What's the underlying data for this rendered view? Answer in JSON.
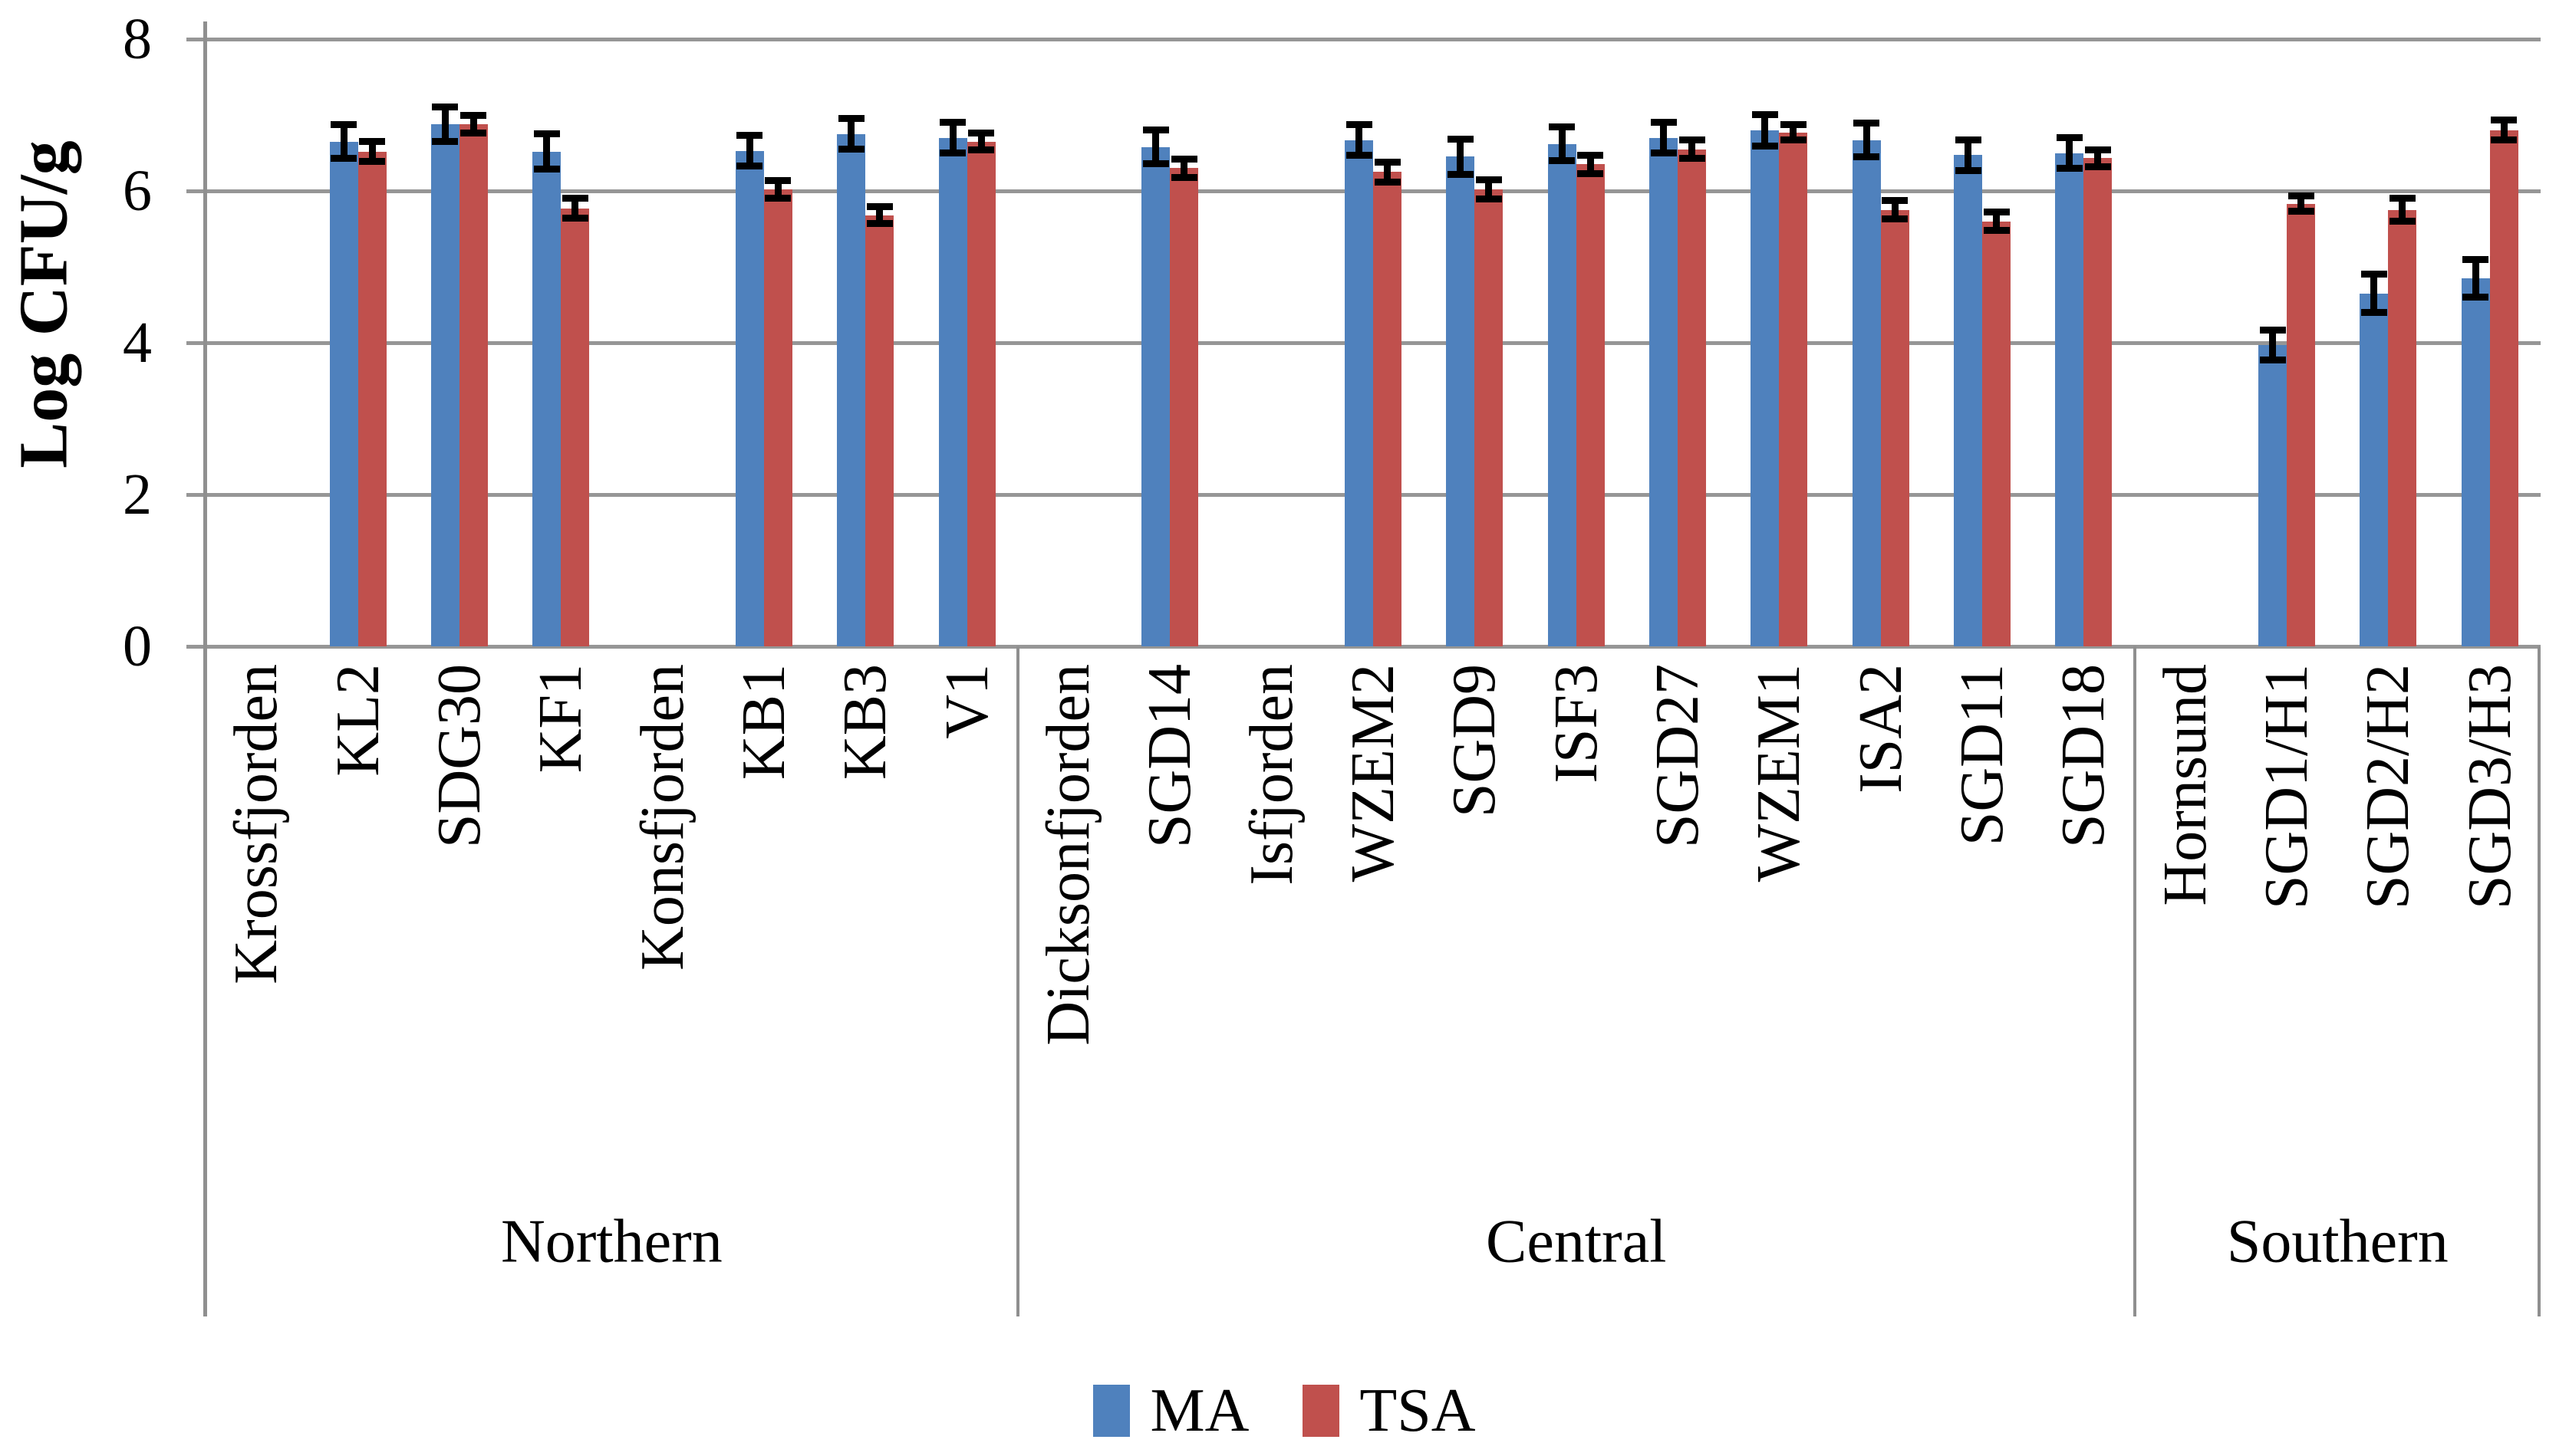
{
  "chart_data": {
    "type": "bar",
    "title": "",
    "ylabel": "Log CFU/g",
    "xlabel": "",
    "ylim": [
      0,
      8
    ],
    "yticks": [
      0,
      2,
      4,
      6,
      8
    ],
    "grid": true,
    "legend_position": "bottom-center",
    "colors": {
      "ma_bar": "#4F81BD",
      "tsa_bar": "#C0504D",
      "gridline": "#969696",
      "axis": "#8F8F8F",
      "error_bar": "#000000",
      "text": "#000000",
      "background": "#FFFFFF"
    },
    "series_meta": [
      {
        "name": "MA",
        "color": "#4F81BD"
      },
      {
        "name": "TSA",
        "color": "#C0504D"
      }
    ],
    "groups": [
      {
        "label": "Northern",
        "categories": [
          {
            "label": "Krossfjorden",
            "MA": null,
            "TSA": null,
            "MA_err": null,
            "TSA_err": null
          },
          {
            "label": "KL2",
            "MA": 6.65,
            "TSA": 6.52,
            "MA_err": 0.22,
            "TSA_err": 0.13
          },
          {
            "label": "SDG30",
            "MA": 6.88,
            "TSA": 6.88,
            "MA_err": 0.23,
            "TSA_err": 0.12
          },
          {
            "label": "KF1",
            "MA": 6.52,
            "TSA": 5.77,
            "MA_err": 0.23,
            "TSA_err": 0.13
          },
          {
            "label": "Konsfjorden",
            "MA": null,
            "TSA": null,
            "MA_err": null,
            "TSA_err": null
          },
          {
            "label": "KB1",
            "MA": 6.53,
            "TSA": 6.02,
            "MA_err": 0.2,
            "TSA_err": 0.12
          },
          {
            "label": "KB3",
            "MA": 6.75,
            "TSA": 5.68,
            "MA_err": 0.2,
            "TSA_err": 0.11
          },
          {
            "label": "V1",
            "MA": 6.7,
            "TSA": 6.65,
            "MA_err": 0.2,
            "TSA_err": 0.11
          }
        ]
      },
      {
        "label": "Central",
        "categories": [
          {
            "label": "Dicksonfjorden",
            "MA": null,
            "TSA": null,
            "MA_err": null,
            "TSA_err": null
          },
          {
            "label": "SGD14",
            "MA": 6.58,
            "TSA": 6.3,
            "MA_err": 0.22,
            "TSA_err": 0.12
          },
          {
            "label": "Isfjorden",
            "MA": null,
            "TSA": null,
            "MA_err": null,
            "TSA_err": null
          },
          {
            "label": "WZEM2",
            "MA": 6.67,
            "TSA": 6.25,
            "MA_err": 0.2,
            "TSA_err": 0.13
          },
          {
            "label": "SGD9",
            "MA": 6.45,
            "TSA": 6.02,
            "MA_err": 0.23,
            "TSA_err": 0.13
          },
          {
            "label": "ISF3",
            "MA": 6.62,
            "TSA": 6.35,
            "MA_err": 0.22,
            "TSA_err": 0.12
          },
          {
            "label": "SGD27",
            "MA": 6.7,
            "TSA": 6.55,
            "MA_err": 0.2,
            "TSA_err": 0.12
          },
          {
            "label": "WZEM1",
            "MA": 6.8,
            "TSA": 6.77,
            "MA_err": 0.21,
            "TSA_err": 0.1
          },
          {
            "label": "ISA2",
            "MA": 6.67,
            "TSA": 5.75,
            "MA_err": 0.22,
            "TSA_err": 0.12
          },
          {
            "label": "SGD11",
            "MA": 6.47,
            "TSA": 5.6,
            "MA_err": 0.2,
            "TSA_err": 0.12
          },
          {
            "label": "SGD18",
            "MA": 6.5,
            "TSA": 6.43,
            "MA_err": 0.2,
            "TSA_err": 0.11
          }
        ]
      },
      {
        "label": "Southern",
        "categories": [
          {
            "label": "Hornsund",
            "MA": null,
            "TSA": null,
            "MA_err": null,
            "TSA_err": null
          },
          {
            "label": "SGD1/H1",
            "MA": 3.97,
            "TSA": 5.83,
            "MA_err": 0.2,
            "TSA_err": 0.1
          },
          {
            "label": "SGD2/H2",
            "MA": 4.65,
            "TSA": 5.75,
            "MA_err": 0.25,
            "TSA_err": 0.15
          },
          {
            "label": "SGD3/H3",
            "MA": 4.85,
            "TSA": 6.8,
            "MA_err": 0.25,
            "TSA_err": 0.13
          }
        ]
      }
    ]
  }
}
